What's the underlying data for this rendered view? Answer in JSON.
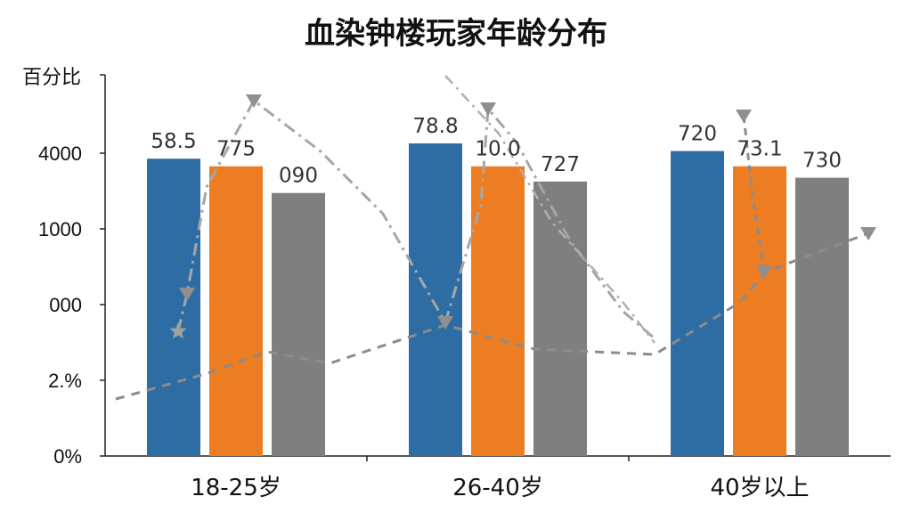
{
  "title": "血染钟楼玩家年龄分布",
  "chart_data": {
    "type": "bar",
    "title": "血染钟楼玩家年龄分布",
    "ylabel": "百分比",
    "xlabel": "",
    "y_tick_labels": [
      "0%",
      "2.%",
      "000",
      "1000",
      "4000"
    ],
    "categories": [
      "18-25岁",
      "26-40岁",
      "40岁以上"
    ],
    "series": [
      {
        "color": "#2e6da4",
        "values": [
          58.5,
          78.8,
          720
        ],
        "labels": [
          "58.5",
          "78.8",
          "720"
        ],
        "level": [
          0.78,
          0.82,
          0.8
        ]
      },
      {
        "color": "#ed7d22",
        "values": [
          775,
          10.0,
          73.1
        ],
        "labels": [
          "775",
          "10.0",
          "73.1"
        ],
        "level": [
          0.76,
          0.76,
          0.76
        ]
      },
      {
        "color": "#7f7f7f",
        "values": [
          90,
          727,
          730
        ],
        "labels": [
          "090",
          "727",
          "730"
        ],
        "level": [
          0.69,
          0.72,
          0.73
        ]
      }
    ],
    "overlay_lines": [
      {
        "style": "dash-dot",
        "color": "#a6a6a6"
      },
      {
        "style": "dashed",
        "color": "#8c8c8c"
      }
    ],
    "grid": false,
    "legend": "none"
  }
}
